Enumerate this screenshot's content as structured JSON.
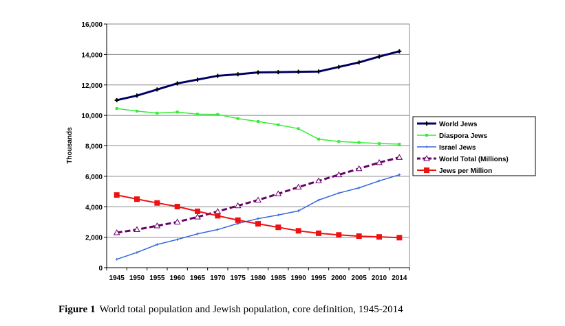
{
  "chart_data": {
    "type": "line",
    "title": "",
    "xlabel": "",
    "ylabel": "Thousands",
    "ylim": [
      0,
      16000
    ],
    "yticks": [
      "0",
      "2,000",
      "4,000",
      "6,000",
      "8,000",
      "10,000",
      "12,000",
      "14,000",
      "16,000"
    ],
    "categories": [
      "1945",
      "1950",
      "1955",
      "1960",
      "1965",
      "1970",
      "1975",
      "1980",
      "1985",
      "1990",
      "1995",
      "2000",
      "2005",
      "2010",
      "2014"
    ],
    "legend_position": "right",
    "grid": true,
    "series": [
      {
        "name": "World Jews",
        "color": "#000066",
        "values": [
          11000,
          11300,
          11700,
          12100,
          12350,
          12600,
          12700,
          12820,
          12840,
          12860,
          12880,
          13180,
          13480,
          13860,
          14210
        ]
      },
      {
        "name": "Diaspora Jews",
        "color": "#33ee33",
        "values": [
          10450,
          10280,
          10150,
          10220,
          10080,
          10060,
          9790,
          9600,
          9380,
          9130,
          8440,
          8280,
          8220,
          8150,
          8110
        ]
      },
      {
        "name": "Israel Jews",
        "color": "#3366dd",
        "values": [
          550,
          1000,
          1520,
          1850,
          2220,
          2500,
          2900,
          3220,
          3460,
          3730,
          4440,
          4900,
          5240,
          5700,
          6100
        ]
      },
      {
        "name": "World Total (Millions)",
        "color": "#660066",
        "values": [
          2300,
          2500,
          2750,
          3000,
          3330,
          3690,
          4070,
          4440,
          4850,
          5290,
          5700,
          6100,
          6500,
          6900,
          7240
        ]
      },
      {
        "name": "Jews per Million",
        "color": "#ee1111",
        "values": [
          4770,
          4500,
          4250,
          4010,
          3700,
          3410,
          3120,
          2880,
          2650,
          2420,
          2260,
          2150,
          2070,
          2020,
          1970
        ]
      }
    ]
  },
  "caption": {
    "label": "Figure  1",
    "text": "World total population and Jewish population, core definition, 1945-2014"
  }
}
